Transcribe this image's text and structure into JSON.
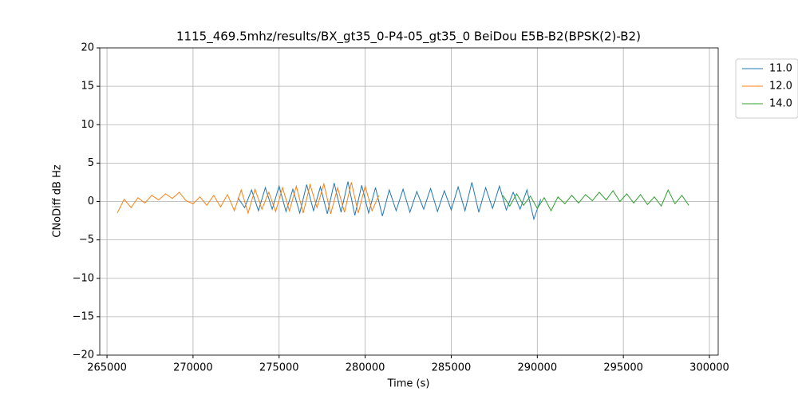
{
  "chart_data": {
    "type": "line",
    "title": "1115_469.5mhz/results/BX_gt35_0-P4-05_gt35_0 BeiDou E5B-B2(BPSK(2)-B2)",
    "xlabel": "Time (s)",
    "ylabel": "CNoDiff dB Hz",
    "xlim": [
      264580,
      300510
    ],
    "ylim": [
      -20,
      20
    ],
    "xticks": [
      265000,
      270000,
      275000,
      280000,
      285000,
      290000,
      295000,
      300000
    ],
    "yticks": [
      {
        "value": -20,
        "label": "−20"
      },
      {
        "value": -15,
        "label": "−15"
      },
      {
        "value": -10,
        "label": "−10"
      },
      {
        "value": -5,
        "label": "−5"
      },
      0,
      5,
      10,
      15,
      20
    ],
    "grid": true,
    "legend": "upper right outside",
    "series": [
      {
        "name": "11.0",
        "color": "#1f77b4",
        "x": [
          272600,
          273000,
          273400,
          273800,
          274200,
          274600,
          275000,
          275400,
          275800,
          276200,
          276600,
          277000,
          277400,
          277800,
          278200,
          278600,
          279000,
          279400,
          279800,
          280200,
          280600,
          281000,
          281400,
          281800,
          282200,
          282600,
          283000,
          283400,
          283800,
          284200,
          284600,
          285000,
          285400,
          285800,
          286200,
          286600,
          287000,
          287400,
          287800,
          288200,
          288600,
          289000,
          289400,
          289800,
          290200
        ],
        "values": [
          0.5,
          -0.8,
          1.5,
          -1.2,
          1.8,
          -1.0,
          2.0,
          -1.3,
          1.6,
          -1.5,
          2.2,
          -1.2,
          1.9,
          -1.6,
          2.4,
          -1.4,
          2.6,
          -1.8,
          2.1,
          -1.5,
          1.8,
          -1.9,
          1.5,
          -1.2,
          1.6,
          -1.4,
          1.3,
          -1.0,
          1.7,
          -1.3,
          1.4,
          -1.1,
          1.9,
          -1.2,
          2.5,
          -1.4,
          1.8,
          -0.9,
          2.0,
          -1.1,
          1.2,
          -1.0,
          1.5,
          -2.3,
          0.3
        ]
      },
      {
        "name": "12.0",
        "color": "#ff7f0e",
        "x": [
          265600,
          266000,
          266400,
          266800,
          267200,
          267600,
          268000,
          268400,
          268800,
          269200,
          269600,
          270000,
          270400,
          270800,
          271200,
          271600,
          272000,
          272400,
          272800,
          273200,
          273600,
          274000,
          274400,
          274800,
          275200,
          275600,
          276000,
          276400,
          276800,
          277200,
          277600,
          278000,
          278400,
          278800,
          279200,
          279600,
          280000,
          280400,
          280800
        ],
        "values": [
          -1.5,
          0.3,
          -0.8,
          0.5,
          -0.2,
          0.8,
          0.2,
          1.0,
          0.4,
          1.2,
          0.1,
          -0.3,
          0.6,
          -0.5,
          0.8,
          -0.7,
          0.9,
          -1.2,
          1.5,
          -1.5,
          1.6,
          -1.0,
          1.2,
          -1.3,
          1.8,
          -1.2,
          2.0,
          -1.5,
          2.2,
          -0.8,
          2.3,
          -1.6,
          1.8,
          -1.4,
          2.5,
          -1.5,
          2.0,
          -1.2,
          0.8
        ]
      },
      {
        "name": "14.0",
        "color": "#2ca02c",
        "x": [
          288000,
          288400,
          288800,
          289200,
          289600,
          290000,
          290400,
          290800,
          291200,
          291600,
          292000,
          292400,
          292800,
          293200,
          293600,
          294000,
          294400,
          294800,
          295200,
          295600,
          296000,
          296400,
          296800,
          297200,
          297600,
          298000,
          298400,
          298800
        ],
        "values": [
          0.8,
          -0.6,
          1.0,
          -0.5,
          0.7,
          -0.9,
          0.5,
          -1.2,
          0.6,
          -0.3,
          0.8,
          -0.2,
          0.9,
          0.1,
          1.2,
          0.2,
          1.4,
          0.0,
          1.0,
          -0.2,
          0.9,
          -0.4,
          0.6,
          -0.6,
          1.5,
          -0.3,
          0.8,
          -0.5
        ]
      }
    ]
  }
}
